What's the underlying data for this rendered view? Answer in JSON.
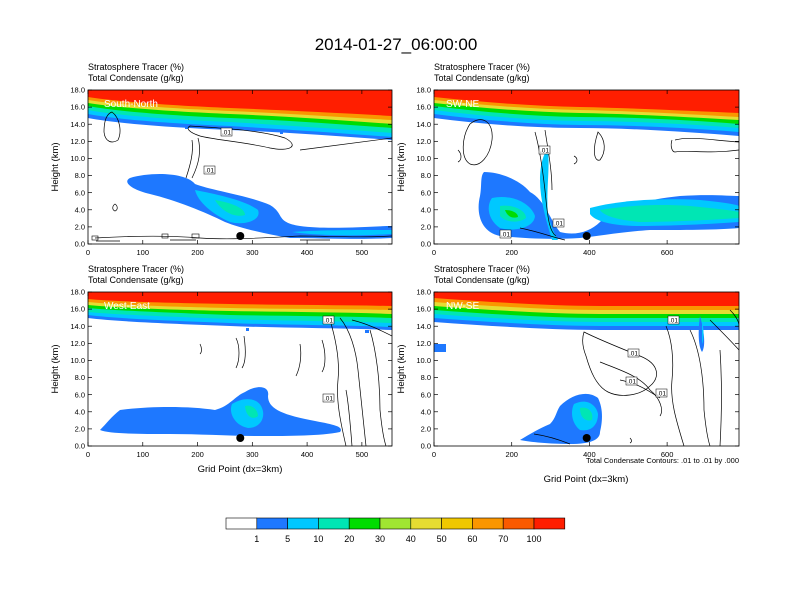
{
  "title": "2014-01-27_06:00:00",
  "left_string_1": "Stratosphere Tracer   (%)",
  "left_string_2": "Total Condensate   (g/kg)",
  "ylabel": "Height (km)",
  "xlabel": "Grid Point (dx=3km)",
  "contour_note": "Total Condensate Contours: .01 to .01 by .000",
  "colorbar": {
    "labels": [
      "1",
      "5",
      "10",
      "20",
      "30",
      "40",
      "50",
      "60",
      "70",
      "100"
    ],
    "colors": [
      "#ffffff",
      "#1e78ff",
      "#00c8ff",
      "#00e6b4",
      "#00dc00",
      "#a0e632",
      "#e6dc32",
      "#f0c800",
      "#fa9600",
      "#fa5a00",
      "#ff1e00"
    ]
  },
  "chart_data": [
    {
      "type": "heatmap",
      "panel": "South-North",
      "x_ticks": [
        0,
        100,
        200,
        300,
        400,
        500
      ],
      "xlim": [
        0,
        555
      ],
      "y_ticks": [
        "0.0",
        "2.0",
        "4.0",
        "6.0",
        "8.0",
        "10.0",
        "12.0",
        "14.0",
        "16.0",
        "18.0"
      ],
      "ylim": [
        0,
        18
      ],
      "contour_labels": [
        ".01",
        ".01"
      ],
      "marker_x": 278
    },
    {
      "type": "heatmap",
      "panel": "SW-NE",
      "x_ticks": [
        0,
        200,
        400,
        600
      ],
      "xlim": [
        0,
        785
      ],
      "y_ticks": [
        "0.0",
        "2.0",
        "4.0",
        "6.0",
        "8.0",
        "10.0",
        "12.0",
        "14.0",
        "16.0",
        "18.0"
      ],
      "ylim": [
        0,
        18
      ],
      "contour_labels": [
        ".01",
        ".01",
        ".01"
      ],
      "marker_x": 393
    },
    {
      "type": "heatmap",
      "panel": "West-East",
      "x_ticks": [
        0,
        100,
        200,
        300,
        400,
        500
      ],
      "xlim": [
        0,
        555
      ],
      "y_ticks": [
        "0.0",
        "2.0",
        "4.0",
        "6.0",
        "8.0",
        "10.0",
        "12.0",
        "14.0",
        "16.0",
        "18.0"
      ],
      "ylim": [
        0,
        18
      ],
      "contour_labels": [
        ".01",
        ".01"
      ],
      "marker_x": 278
    },
    {
      "type": "heatmap",
      "panel": "NW-SE",
      "x_ticks": [
        0,
        200,
        400,
        600
      ],
      "xlim": [
        0,
        785
      ],
      "y_ticks": [
        "0.0",
        "2.0",
        "4.0",
        "6.0",
        "8.0",
        "10.0",
        "12.0",
        "14.0",
        "16.0",
        "18.0"
      ],
      "ylim": [
        0,
        18
      ],
      "contour_labels": [
        ".01",
        ".01",
        ".01",
        ".01"
      ],
      "marker_x": 393
    }
  ]
}
